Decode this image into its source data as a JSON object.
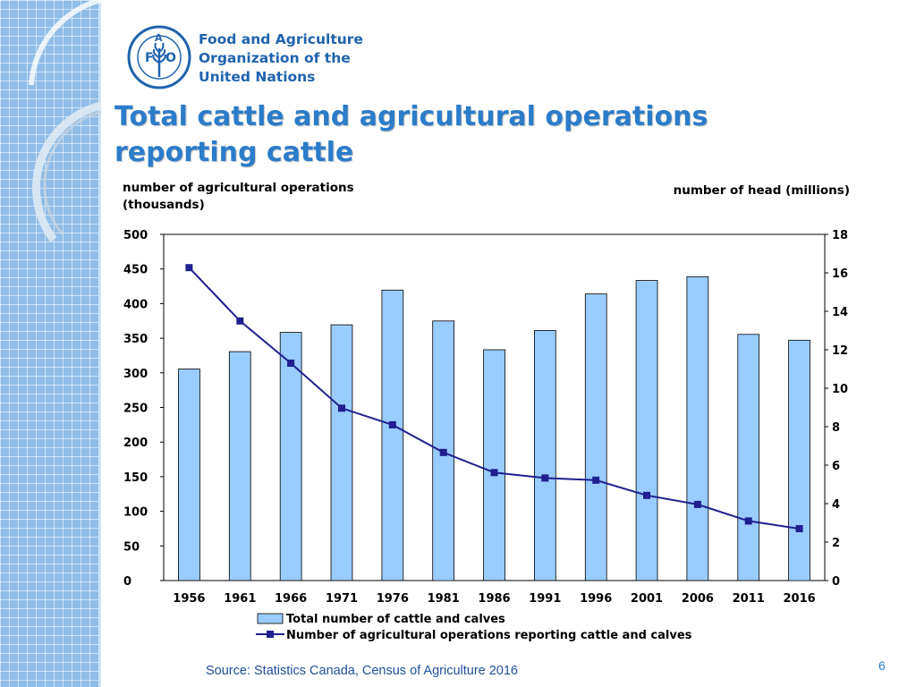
{
  "org": {
    "line1": "Food and Agriculture",
    "line2": "Organization of the",
    "line3": "United Nations",
    "logo_letters": {
      "f": "F",
      "a": "A",
      "o": "O"
    }
  },
  "slide": {
    "title": "Total cattle and agricultural operations reporting cattle",
    "source": "Source: Statistics Canada, Census of Agriculture 2016",
    "page_number": "6"
  },
  "colors": {
    "bar_fill": "#99ccff",
    "bar_stroke": "#000000",
    "line": "#1f1f8f",
    "title": "#2b7cc9",
    "strip": "#8fbde8"
  },
  "chart_data": {
    "type": "bar",
    "categories": [
      "1956",
      "1961",
      "1966",
      "1971",
      "1976",
      "1981",
      "1986",
      "1991",
      "1996",
      "2001",
      "2006",
      "2011",
      "2016"
    ],
    "series": [
      {
        "name": "Total number of cattle and calves",
        "type": "bar",
        "axis": "right",
        "values": [
          11.0,
          11.9,
          12.9,
          13.3,
          15.1,
          13.5,
          12.0,
          13.0,
          14.9,
          15.6,
          15.8,
          12.8,
          12.5
        ]
      },
      {
        "name": "Number of agricultural operations reporting cattle and calves",
        "type": "line",
        "axis": "left",
        "values": [
          452,
          375,
          314,
          249,
          225,
          185,
          156,
          148,
          145,
          123,
          110,
          86,
          75
        ]
      }
    ],
    "ylabel_left": "number of agricultural operations (thousands)",
    "ylabel_right": "number of head (millions)",
    "ylim_left": [
      0,
      500
    ],
    "ylim_right": [
      0,
      18
    ],
    "yticks_left": [
      "0",
      "50",
      "100",
      "150",
      "200",
      "250",
      "300",
      "350",
      "400",
      "450",
      "500"
    ],
    "yticks_right": [
      "0",
      "2",
      "4",
      "6",
      "8",
      "10",
      "12",
      "14",
      "16",
      "18"
    ],
    "grid": false,
    "legend_position": "bottom"
  }
}
